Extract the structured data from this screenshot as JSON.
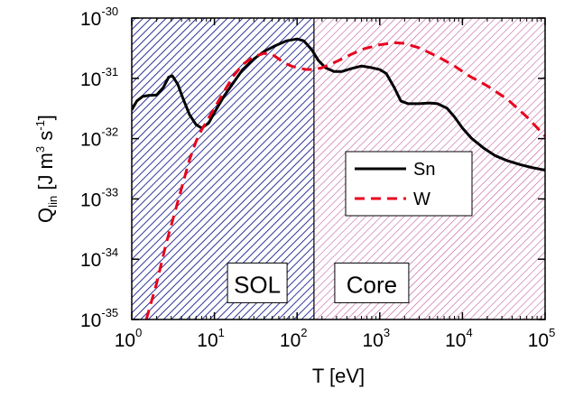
{
  "chart_data": {
    "type": "line",
    "xlabel": "T [eV]",
    "ylabel": {
      "main": "Q",
      "sub": "lin",
      "unit_open": "[J m",
      "unit_exp1": "3",
      "unit_mid": " s",
      "unit_exp2": "-1",
      "unit_close": "]"
    },
    "x_scale": "log",
    "y_scale": "log",
    "xlim": [
      1,
      100000
    ],
    "ylim": [
      1e-35,
      1e-30
    ],
    "x_ticks": [
      {
        "base": "10",
        "exp": "0",
        "value": 1
      },
      {
        "base": "10",
        "exp": "1",
        "value": 10
      },
      {
        "base": "10",
        "exp": "2",
        "value": 100
      },
      {
        "base": "10",
        "exp": "3",
        "value": 1000
      },
      {
        "base": "10",
        "exp": "4",
        "value": 10000
      },
      {
        "base": "10",
        "exp": "5",
        "value": 100000
      }
    ],
    "y_ticks": [
      {
        "base": "10",
        "exp": "-30",
        "value": 1e-30
      },
      {
        "base": "10",
        "exp": "-31",
        "value": 1e-31
      },
      {
        "base": "10",
        "exp": "-32",
        "value": 1e-32
      },
      {
        "base": "10",
        "exp": "-33",
        "value": 1e-33
      },
      {
        "base": "10",
        "exp": "-34",
        "value": 1e-34
      },
      {
        "base": "10",
        "exp": "-35",
        "value": 1e-35
      }
    ],
    "regions": [
      {
        "label": "SOL",
        "x_range": [
          1,
          160
        ],
        "color": "#1a1f8c",
        "label_x": 33,
        "label_y": 2.5e-35
      },
      {
        "label": "Core",
        "x_range": [
          160,
          100000
        ],
        "color": "#c0509a",
        "label_x": 800,
        "label_y": 2.5e-35
      }
    ],
    "legend": {
      "position": "center-right"
    },
    "series": [
      {
        "name": "Sn",
        "color": "#000000",
        "dash": "solid",
        "points": [
          [
            1.0,
            3e-32
          ],
          [
            1.15,
            4.2e-32
          ],
          [
            1.35,
            5e-32
          ],
          [
            1.6,
            5.2e-32
          ],
          [
            2.0,
            5.3e-32
          ],
          [
            2.4,
            7e-32
          ],
          [
            2.8,
            1.05e-31
          ],
          [
            3.1,
            1.1e-31
          ],
          [
            3.6,
            8e-32
          ],
          [
            4.2,
            4.5e-32
          ],
          [
            5.0,
            2.5e-32
          ],
          [
            6.0,
            1.7e-32
          ],
          [
            7.0,
            1.5e-32
          ],
          [
            8.5,
            1.8e-32
          ],
          [
            10,
            2.7e-32
          ],
          [
            13,
            5e-32
          ],
          [
            17,
            8.5e-32
          ],
          [
            22,
            1.4e-31
          ],
          [
            30,
            2.1e-31
          ],
          [
            40,
            2.8e-31
          ],
          [
            55,
            3.5e-31
          ],
          [
            75,
            4.2e-31
          ],
          [
            100,
            4.5e-31
          ],
          [
            120,
            4.2e-31
          ],
          [
            150,
            3e-31
          ],
          [
            180,
            2e-31
          ],
          [
            220,
            1.5e-31
          ],
          [
            280,
            1.3e-31
          ],
          [
            350,
            1.3e-31
          ],
          [
            450,
            1.45e-31
          ],
          [
            600,
            1.6e-31
          ],
          [
            800,
            1.5e-31
          ],
          [
            1000,
            1.4e-31
          ],
          [
            1200,
            1.2e-31
          ],
          [
            1500,
            7e-32
          ],
          [
            1800,
            4.2e-32
          ],
          [
            2200,
            3.8e-32
          ],
          [
            3000,
            3.8e-32
          ],
          [
            4000,
            3.9e-32
          ],
          [
            5000,
            3.8e-32
          ],
          [
            6500,
            3.2e-32
          ],
          [
            8000,
            2.3e-32
          ],
          [
            10000,
            1.5e-32
          ],
          [
            13000,
            1e-32
          ],
          [
            18000,
            7e-33
          ],
          [
            25000,
            5.2e-33
          ],
          [
            35000,
            4.3e-33
          ],
          [
            50000,
            3.7e-33
          ],
          [
            70000,
            3.3e-33
          ],
          [
            100000,
            3e-33
          ]
        ]
      },
      {
        "name": "W",
        "color": "#e8001c",
        "dash": "dashed",
        "points": [
          [
            1.5,
            1e-35
          ],
          [
            2.0,
            4e-35
          ],
          [
            2.6,
            1.8e-34
          ],
          [
            3.2,
            5e-34
          ],
          [
            4.0,
            1.5e-33
          ],
          [
            5.0,
            4.5e-33
          ],
          [
            6.0,
            9e-33
          ],
          [
            7.0,
            1.4e-32
          ],
          [
            8.0,
            1.9e-32
          ],
          [
            10,
            3.2e-32
          ],
          [
            13,
            6e-32
          ],
          [
            17,
            1.1e-31
          ],
          [
            22,
            1.7e-31
          ],
          [
            30,
            2.3e-31
          ],
          [
            40,
            2.6e-31
          ],
          [
            50,
            2.5e-31
          ],
          [
            60,
            2.1e-31
          ],
          [
            70,
            1.8e-31
          ],
          [
            85,
            1.6e-31
          ],
          [
            100,
            1.5e-31
          ],
          [
            130,
            1.4e-31
          ],
          [
            160,
            1.4e-31
          ],
          [
            200,
            1.5e-31
          ],
          [
            300,
            1.9e-31
          ],
          [
            450,
            2.5e-31
          ],
          [
            650,
            3.1e-31
          ],
          [
            1000,
            3.6e-31
          ],
          [
            1500,
            3.9e-31
          ],
          [
            2000,
            3.8e-31
          ],
          [
            3000,
            3.2e-31
          ],
          [
            5000,
            2.3e-31
          ],
          [
            8000,
            1.6e-31
          ],
          [
            12000,
            1.1e-31
          ],
          [
            20000,
            7.5e-32
          ],
          [
            35000,
            4.5e-32
          ],
          [
            60000,
            2.3e-32
          ],
          [
            100000,
            1.1e-32
          ]
        ]
      }
    ]
  }
}
